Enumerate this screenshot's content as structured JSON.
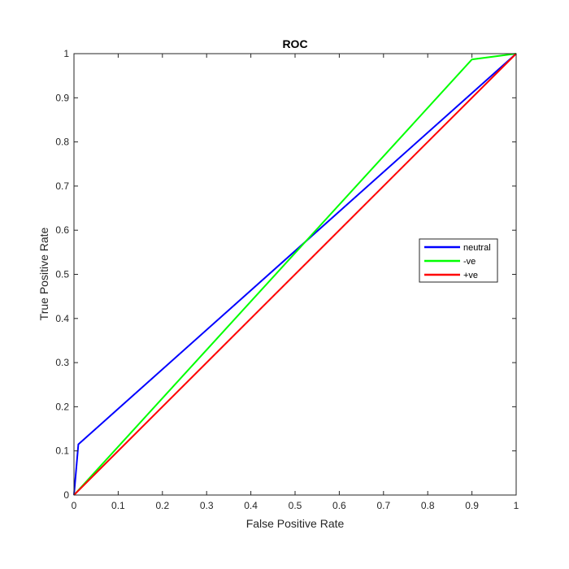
{
  "chart_data": {
    "type": "line",
    "title": "ROC",
    "xlabel": "False Positive Rate",
    "ylabel": "True Positive Rate",
    "xlim": [
      0,
      1
    ],
    "ylim": [
      0,
      1
    ],
    "x_ticks": [
      "0",
      "0.1",
      "0.2",
      "0.3",
      "0.4",
      "0.5",
      "0.6",
      "0.7",
      "0.8",
      "0.9",
      "1"
    ],
    "y_ticks": [
      "0",
      "0.1",
      "0.2",
      "0.3",
      "0.4",
      "0.5",
      "0.6",
      "0.7",
      "0.8",
      "0.9",
      "1"
    ],
    "grid": false,
    "legend_position": "right",
    "series": [
      {
        "name": "neutral",
        "color": "#0000ff",
        "points": [
          [
            0,
            0
          ],
          [
            0.01,
            0.115
          ],
          [
            1,
            1
          ]
        ]
      },
      {
        "name": "-ve",
        "color": "#00ff00",
        "points": [
          [
            0,
            0
          ],
          [
            0.9,
            0.987
          ],
          [
            1,
            1
          ]
        ]
      },
      {
        "name": "+ve",
        "color": "#ff0000",
        "points": [
          [
            0,
            0
          ],
          [
            1,
            1
          ]
        ]
      }
    ]
  }
}
